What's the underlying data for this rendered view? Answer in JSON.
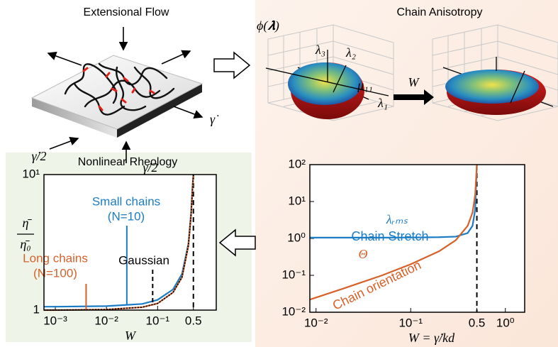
{
  "flow": {
    "title": "Extensional Flow",
    "rate": "γ̇",
    "half_rate_left": "γ̇/2",
    "half_rate_bottom": "γ̇/2"
  },
  "anisotropy": {
    "title": "Chain Anisotropy",
    "density": "ϕ(𝝀)",
    "axis_3": "λ₃",
    "axis_2": "λ₂",
    "moment": "μ₁₁",
    "axis_1": "λ₁",
    "arrow": "W"
  },
  "chart_data": [
    {
      "type": "line",
      "title": "Nonlinear Rheology",
      "xlabel": "W",
      "ylabel": [
        "η̄",
        "η̄₀"
      ],
      "xscale": "log",
      "yscale": "log",
      "x": [
        0.0006,
        0.001,
        0.01,
        0.05,
        0.1,
        0.2,
        0.3,
        0.4,
        0.45,
        0.48,
        0.5
      ],
      "series": [
        {
          "name": "Small chains",
          "detail": "(N=10)",
          "color": "#1b7cc4",
          "style": "solid",
          "label_x": 0.025,
          "values": [
            1.06,
            1.06,
            1.07,
            1.11,
            1.19,
            1.42,
            1.85,
            3.1,
            5.2,
            8,
            10
          ]
        },
        {
          "name": "Long chains",
          "detail": "(N=100)",
          "color": "#d6612a",
          "style": "solid",
          "label_x": 0.004,
          "values": [
            1.0,
            1.0,
            1.01,
            1.05,
            1.12,
            1.35,
            1.75,
            3.0,
            5.0,
            7.8,
            10
          ]
        },
        {
          "name": "Gaussian",
          "color": "#000000",
          "style": "dotted",
          "label_x": 0.08,
          "values": [
            1.0,
            1.0,
            1.01,
            1.05,
            1.12,
            1.35,
            1.75,
            3.0,
            5.0,
            7.8,
            10
          ]
        }
      ],
      "vline": 0.5,
      "xlim": [
        0.0006,
        1.4
      ],
      "ylim": [
        1,
        10
      ],
      "xticks": [
        {
          "value": 0.001,
          "label": "10⁻³"
        },
        {
          "value": 0.01,
          "label": "10⁻²"
        },
        {
          "value": 0.1,
          "label": "10⁻¹"
        },
        0.5
      ],
      "yticks": [
        1,
        {
          "value": 10,
          "label": "10¹"
        }
      ]
    },
    {
      "type": "line",
      "xlabel": "W = γ̇/kd",
      "xscale": "log",
      "yscale": "log",
      "x": [
        0.0086,
        0.01,
        0.02,
        0.05,
        0.1,
        0.2,
        0.3,
        0.4,
        0.45,
        0.48,
        0.5
      ],
      "series": [
        {
          "name": "λᵣₘₛ",
          "detail": "Chain Stretch",
          "color": "#1b7cc4",
          "style": "solid",
          "values": [
            1.05,
            1.05,
            1.05,
            1.05,
            1.06,
            1.08,
            1.12,
            1.4,
            2.2,
            6,
            100
          ]
        },
        {
          "name": "Θ",
          "detail": "Chain orientation",
          "color": "#d6612a",
          "style": "solid",
          "values": [
            0.022,
            0.025,
            0.045,
            0.1,
            0.2,
            0.45,
            0.9,
            2.2,
            5,
            15,
            100
          ]
        }
      ],
      "vline": 0.5,
      "xlim": [
        0.0086,
        1.6
      ],
      "ylim": [
        0.01,
        100
      ],
      "xticks": [
        {
          "value": 0.01,
          "label": "10⁻²"
        },
        {
          "value": 0.1,
          "label": "10⁻¹"
        },
        0.5,
        {
          "value": 1,
          "label": "10⁰"
        }
      ],
      "yticks": [
        {
          "value": 0.01,
          "label": "10⁻²"
        },
        {
          "value": 0.1,
          "label": "10⁻¹"
        },
        {
          "value": 1,
          "label": "10⁰"
        },
        {
          "value": 10,
          "label": "10¹"
        },
        {
          "value": 100,
          "label": "10²"
        }
      ]
    }
  ]
}
